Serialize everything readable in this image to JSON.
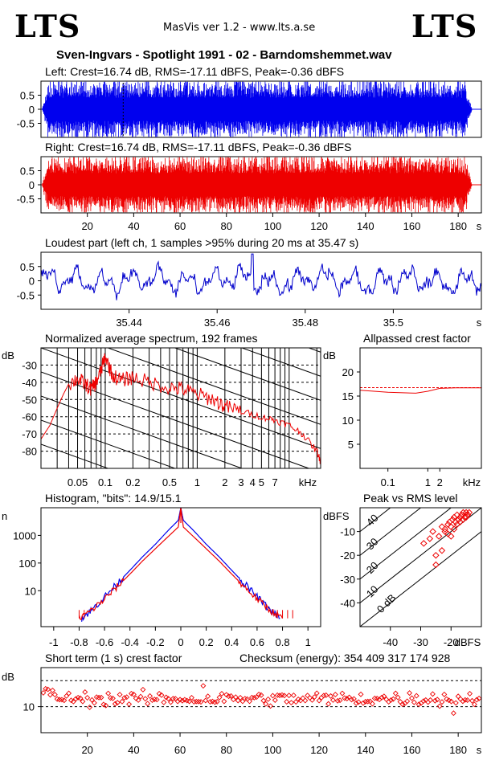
{
  "header": {
    "logo_left": "LTS",
    "logo_right": "LTS",
    "app_title": "MasVis ver 1.2 - www.lts.a.se",
    "file_title": "Sven-Ingvars - Spotlight 1991 - 02 - Barndomshemmet.wav"
  },
  "colors": {
    "left": "#0000ee",
    "right": "#ee0000",
    "crest": "#ee0000",
    "grid": "#000000"
  },
  "chart_data": [
    {
      "id": "left_waveform",
      "type": "area",
      "title": "Left: Crest=16.74 dB, RMS=-17.11 dBFS, Peak=-0.36 dBFS",
      "series": [
        {
          "name": "Left",
          "color": "#0000ee"
        }
      ],
      "yticks": [
        "0.5",
        "0",
        "-0.5"
      ],
      "ylim": [
        -1,
        1
      ],
      "xlim": [
        0,
        190
      ],
      "envelope": {
        "start_s": 0.5,
        "end_s": 186,
        "amplitude": 0.9
      },
      "marker_s": 35.47
    },
    {
      "id": "right_waveform",
      "type": "area",
      "title": "Right: Crest=16.74 dB, RMS=-17.11 dBFS, Peak=-0.36 dBFS",
      "series": [
        {
          "name": "Right",
          "color": "#ee0000"
        }
      ],
      "yticks": [
        "0.5",
        "0",
        "-0.5"
      ],
      "ylim": [
        -1,
        1
      ],
      "xlim": [
        0,
        190
      ],
      "xticks": [
        "20",
        "40",
        "60",
        "80",
        "100",
        "120",
        "140",
        "160",
        "180"
      ],
      "xunit": "s",
      "envelope": {
        "start_s": 0.5,
        "end_s": 186,
        "amplitude": 0.9
      }
    },
    {
      "id": "loudest_part",
      "type": "line",
      "title": "Loudest part (left  ch, 1 samples >95% during 20 ms at 35.47 s)",
      "yticks": [
        "0.5",
        "0",
        "-0.5"
      ],
      "ylim": [
        -1,
        1
      ],
      "xlim": [
        35.42,
        35.52
      ],
      "xticks": [
        "35.44",
        "35.46",
        "35.48",
        "35.5"
      ],
      "xunit": "s",
      "peak": {
        "x": 35.468,
        "y": 0.94
      }
    },
    {
      "id": "avg_spectrum",
      "type": "line",
      "title": "Normalized average spectrum, 192 frames",
      "ylabel": "dB",
      "yticks": [
        "-30",
        "-40",
        "-50",
        "-60",
        "-70",
        "-80"
      ],
      "ylim": [
        -90,
        -20
      ],
      "xlim": [
        0.02,
        22
      ],
      "xscale": "log",
      "xticks": [
        "0.05",
        "0.1",
        "0.2",
        "0.5",
        "1",
        "2",
        "3",
        "4",
        "5",
        "7"
      ],
      "xunit": "kHz",
      "x": [
        0.02,
        0.025,
        0.03,
        0.035,
        0.04,
        0.05,
        0.06,
        0.07,
        0.08,
        0.09,
        0.1,
        0.12,
        0.15,
        0.2,
        0.3,
        0.5,
        0.7,
        1,
        1.5,
        2,
        3,
        5,
        7,
        10,
        14,
        20,
        22
      ],
      "y": [
        -73,
        -65,
        -55,
        -47,
        -41,
        -38,
        -41,
        -44,
        -40,
        -33,
        -25,
        -36,
        -39,
        -37,
        -40,
        -43,
        -44,
        -47,
        -50,
        -54,
        -57,
        -60,
        -62,
        -65,
        -70,
        -80,
        -86
      ]
    },
    {
      "id": "allpassed_crest",
      "type": "line",
      "title": "Allpassed crest factor",
      "ylabel": "dB",
      "yticks": [
        "20",
        "15",
        "10",
        "5"
      ],
      "ylim": [
        0,
        25
      ],
      "xlim": [
        0.02,
        22
      ],
      "xscale": "log",
      "xticks": [
        "0.1",
        "1",
        "2"
      ],
      "xunit": "kHz",
      "reference_db": 16.74,
      "x": [
        0.02,
        0.1,
        0.5,
        1,
        2,
        5,
        10,
        22
      ],
      "y": [
        16.2,
        15.8,
        15.6,
        16.0,
        16.6,
        16.7,
        16.7,
        16.7
      ]
    },
    {
      "id": "histogram",
      "type": "line",
      "title": "Histogram, \"bits\": 14.9/15.1",
      "ylabel": "n",
      "yscale": "log",
      "yticks": [
        "1000",
        "100",
        "10"
      ],
      "xlim": [
        -1.1,
        1.1
      ],
      "xticks": [
        "-1",
        "-0.8",
        "-0.6",
        "-0.4",
        "-0.2",
        "0",
        "0.2",
        "0.4",
        "0.6",
        "0.8",
        "1"
      ],
      "series": [
        {
          "name": "Left",
          "color": "#0000ee",
          "x": [
            -0.78,
            -0.7,
            -0.6,
            -0.5,
            -0.4,
            -0.3,
            -0.2,
            -0.1,
            -0.02,
            0,
            0.02,
            0.1,
            0.2,
            0.3,
            0.4,
            0.5,
            0.6,
            0.7,
            0.78
          ],
          "y": [
            1,
            2,
            6,
            18,
            55,
            170,
            480,
            1500,
            3500,
            10000,
            3500,
            1500,
            480,
            170,
            55,
            18,
            6,
            2,
            1
          ]
        },
        {
          "name": "Right",
          "color": "#ee0000",
          "x": [
            -0.8,
            -0.7,
            -0.6,
            -0.5,
            -0.4,
            -0.3,
            -0.2,
            -0.1,
            -0.02,
            0,
            0.02,
            0.1,
            0.2,
            0.3,
            0.4,
            0.5,
            0.6,
            0.7,
            0.8
          ],
          "y": [
            1,
            2,
            5,
            14,
            40,
            120,
            330,
            900,
            2000,
            10000,
            2000,
            900,
            330,
            120,
            40,
            14,
            5,
            2,
            1
          ]
        }
      ]
    },
    {
      "id": "peak_vs_rms",
      "type": "scatter",
      "title": "Peak vs RMS level",
      "ylabel": "dBFS",
      "xlabel": "dBFS",
      "yticks": [
        "-10",
        "-20",
        "-30",
        "-40"
      ],
      "xticks": [
        "-40",
        "-30",
        "-20"
      ],
      "xlim": [
        -50,
        -10
      ],
      "ylim": [
        -50,
        0
      ],
      "diagonals": [
        "40",
        "30",
        "20",
        "10",
        "0 dB"
      ],
      "x": [
        -29,
        -27,
        -26,
        -25,
        -24,
        -23,
        -22,
        -21,
        -20.5,
        -20,
        -19.5,
        -19,
        -18.5,
        -18,
        -17.5,
        -17,
        -16.5,
        -16,
        -15.5,
        -15,
        -14.5,
        -14,
        -19,
        -18,
        -17,
        -16,
        -15,
        -21,
        -22,
        -20,
        -25,
        -23
      ],
      "y": [
        -15,
        -13,
        -10,
        -20,
        -12,
        -8,
        -9,
        -7,
        -6,
        -8,
        -5,
        -4,
        -6,
        -3,
        -5,
        -4,
        -3,
        -2,
        -4,
        -2,
        -3,
        -2,
        -9,
        -7,
        -6,
        -5,
        -4,
        -11,
        -10,
        -12,
        -24,
        -18
      ]
    },
    {
      "id": "short_term_crest",
      "type": "scatter",
      "title": "Short term (1 s) crest factor",
      "checksum_text": "Checksum (energy):   354 409 317 174 928",
      "ylabel": "dB",
      "yticks": [
        "10"
      ],
      "ylim": [
        0,
        25
      ],
      "xlim": [
        0,
        190
      ],
      "xticks": [
        "20",
        "40",
        "60",
        "80",
        "100",
        "120",
        "140",
        "160",
        "180"
      ],
      "xunit": "s",
      "reference_db": 16.74
    }
  ]
}
